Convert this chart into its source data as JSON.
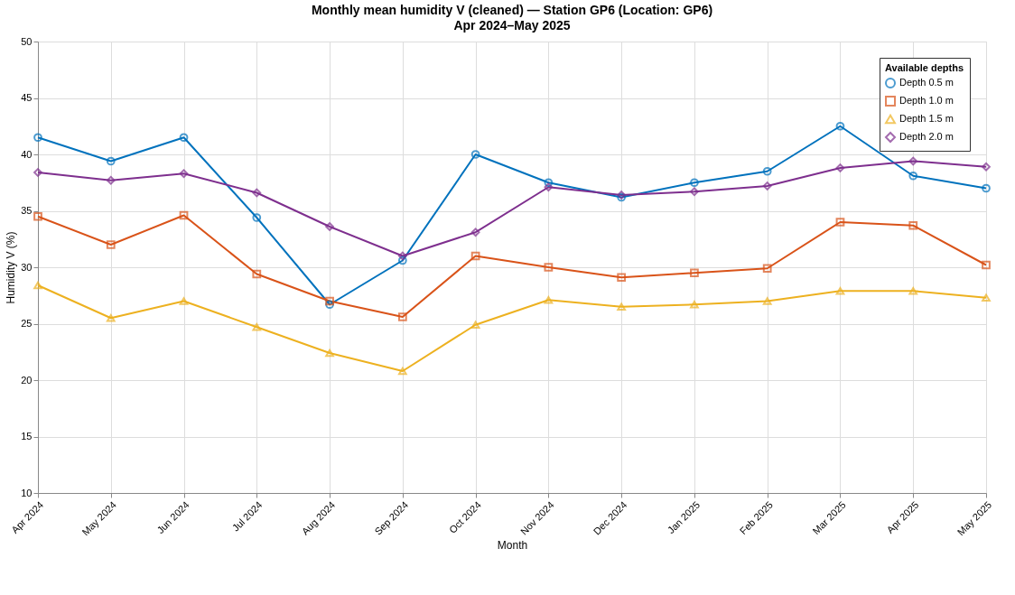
{
  "chart_data": {
    "type": "line",
    "title": "Monthly mean humidity V (cleaned) — Station GP6 (Location: GP6)",
    "subtitle": "Apr 2024–May 2025",
    "xlabel": "Month",
    "ylabel": "Humidity V (%)",
    "legend_title": "Available depths",
    "categories": [
      "Apr 2024",
      "May 2024",
      "Jun 2024",
      "Jul 2024",
      "Aug 2024",
      "Sep 2024",
      "Oct 2024",
      "Nov 2024",
      "Dec 2024",
      "Jan 2025",
      "Feb 2025",
      "Mar 2025",
      "Apr 2025",
      "May 2025"
    ],
    "series": [
      {
        "name": "Depth 0.5 m",
        "color": "#0072bd",
        "marker": "circle",
        "values": [
          41.5,
          39.4,
          41.5,
          34.4,
          26.7,
          30.6,
          40.0,
          37.5,
          36.2,
          37.5,
          38.5,
          42.5,
          38.1,
          37.0
        ]
      },
      {
        "name": "Depth 1.0 m",
        "color": "#d95319",
        "marker": "square",
        "values": [
          34.5,
          32.0,
          34.6,
          29.4,
          27.0,
          25.6,
          31.0,
          30.0,
          29.1,
          29.5,
          29.9,
          34.0,
          33.7,
          30.2
        ]
      },
      {
        "name": "Depth 1.5 m",
        "color": "#edb120",
        "marker": "triangle",
        "values": [
          28.4,
          25.5,
          27.0,
          24.7,
          22.4,
          20.8,
          24.9,
          27.1,
          26.5,
          26.7,
          27.0,
          27.9,
          27.9,
          27.3
        ]
      },
      {
        "name": "Depth 2.0 m",
        "color": "#7e2f8e",
        "marker": "diamond",
        "values": [
          38.4,
          37.7,
          38.3,
          36.6,
          33.6,
          31.0,
          33.1,
          37.1,
          36.4,
          36.7,
          37.2,
          38.8,
          39.4,
          38.9
        ]
      }
    ],
    "ylim": [
      10,
      50
    ],
    "yticks": [
      10,
      15,
      20,
      25,
      30,
      35,
      40,
      45,
      50
    ],
    "grid": true,
    "legend": "top right",
    "line_style": "solid"
  }
}
